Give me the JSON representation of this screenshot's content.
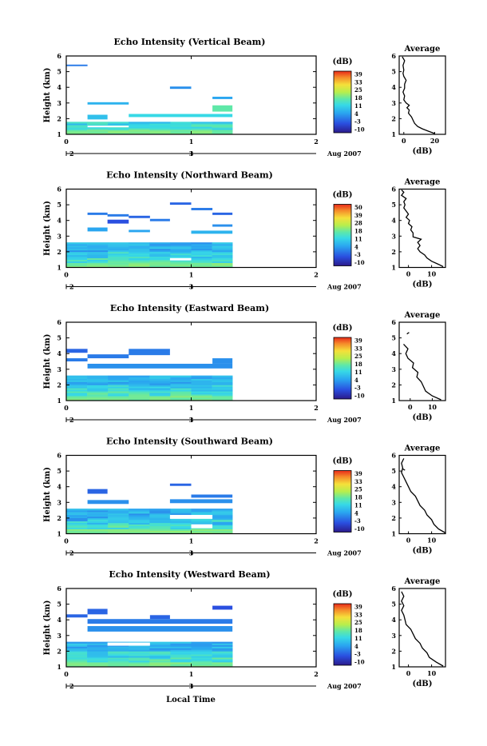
{
  "panels": [
    {
      "title": "Echo Intensity (Vertical Beam)",
      "avg_title": "Average",
      "colorbar_ticks": [
        "39",
        "33",
        "25",
        "18",
        "11",
        "4",
        "-3",
        "-10"
      ],
      "avg_x_ticks": [
        "0",
        "20"
      ],
      "avg_xlim": [
        -3,
        27
      ]
    },
    {
      "title": "Echo Intensity (Northward Beam)",
      "avg_title": "Average",
      "colorbar_ticks": [
        "50",
        "39",
        "28",
        "18",
        "11",
        "4",
        "-3",
        "-10"
      ],
      "avg_x_ticks": [
        "0",
        "10"
      ],
      "avg_xlim": [
        -4,
        16
      ]
    },
    {
      "title": "Echo Intensity (Eastward Beam)",
      "avg_title": "Average",
      "colorbar_ticks": [
        "39",
        "33",
        "25",
        "18",
        "11",
        "4",
        "-3",
        "-10"
      ],
      "avg_x_ticks": [
        "0",
        "10"
      ],
      "avg_xlim": [
        -5,
        16
      ]
    },
    {
      "title": "Echo Intensity (Southward Beam)",
      "avg_title": "Average",
      "colorbar_ticks": [
        "39",
        "33",
        "25",
        "18",
        "11",
        "4",
        "-3",
        "-10"
      ],
      "avg_x_ticks": [
        "0",
        "10"
      ],
      "avg_xlim": [
        -4,
        16
      ]
    },
    {
      "title": "Echo Intensity (Westward Beam)",
      "avg_title": "Average",
      "colorbar_ticks": [
        "39",
        "33",
        "25",
        "18",
        "11",
        "4",
        "-3",
        "-10"
      ],
      "avg_x_ticks": [
        "0",
        "10"
      ],
      "avg_xlim": [
        -4,
        16
      ]
    }
  ],
  "common": {
    "ylabel": "Height (km)",
    "y_ticks": [
      "1",
      "2",
      "3",
      "4",
      "5",
      "6"
    ],
    "x_ticks": [
      "0",
      "1",
      "2"
    ],
    "date_ticks": [
      "2",
      "3"
    ],
    "date_label": "Aug 2007",
    "xlabel": "Local Time",
    "unit_label": "(dB)",
    "avg_xlabel": "(dB)"
  },
  "chart_data": [
    {
      "type": "heatmap",
      "beam": "vertical",
      "xlim": [
        0,
        2
      ],
      "ylim": [
        1,
        6
      ],
      "data_end_x": 1.33,
      "blocks": [
        [
          0,
          0.17,
          5.35,
          5.45,
          -4
        ],
        [
          0.17,
          0.5,
          2.9,
          3.05,
          -1
        ],
        [
          0.83,
          1,
          3.9,
          4.05,
          -3
        ],
        [
          1.17,
          1.33,
          3.25,
          3.4,
          -2
        ],
        [
          1.17,
          1.33,
          2.45,
          2.85,
          5
        ],
        [
          0.17,
          0.33,
          1.95,
          2.25,
          0
        ],
        [
          0.5,
          1.33,
          2.1,
          2.3,
          2
        ]
      ],
      "average": [
        [
          1.05,
          20
        ],
        [
          1.2,
          16
        ],
        [
          1.35,
          12
        ],
        [
          1.5,
          9
        ],
        [
          1.7,
          7
        ],
        [
          1.9,
          6
        ],
        [
          2.1,
          5
        ],
        [
          2.35,
          3
        ],
        [
          2.55,
          3.5
        ],
        [
          2.7,
          2
        ],
        [
          2.85,
          3.5
        ],
        [
          3.0,
          1.5
        ],
        [
          3.2,
          0
        ],
        [
          3.45,
          0.5
        ],
        [
          3.7,
          -0.5
        ],
        [
          3.95,
          0.5
        ],
        [
          4.2,
          0.5
        ],
        [
          4.45,
          1.5
        ],
        [
          4.7,
          0
        ],
        [
          4.9,
          -0.5
        ],
        [
          5.1,
          0
        ],
        [
          5.4,
          -0.5
        ],
        [
          5.7,
          0.5
        ],
        [
          5.95,
          -1
        ]
      ]
    },
    {
      "type": "heatmap",
      "beam": "northward",
      "xlim": [
        0,
        2
      ],
      "ylim": [
        1,
        6
      ],
      "data_end_x": 1.33,
      "blocks": [
        [
          0.17,
          0.33,
          4.35,
          4.5,
          -4
        ],
        [
          0.33,
          0.5,
          4.25,
          4.4,
          -4
        ],
        [
          0.5,
          0.67,
          4.15,
          4.3,
          -5
        ],
        [
          0.67,
          0.83,
          3.95,
          4.1,
          -4
        ],
        [
          0.83,
          1,
          5.0,
          5.15,
          -5
        ],
        [
          1,
          1.17,
          4.65,
          4.8,
          -4
        ],
        [
          1.17,
          1.33,
          4.35,
          4.5,
          -5
        ],
        [
          0.33,
          0.5,
          3.8,
          4.05,
          -6
        ],
        [
          0.17,
          0.33,
          3.3,
          3.55,
          -2
        ],
        [
          0.5,
          0.67,
          3.25,
          3.4,
          -2
        ],
        [
          1,
          1.33,
          3.15,
          3.35,
          -1
        ],
        [
          1.17,
          1.33,
          3.6,
          3.75,
          -3
        ]
      ],
      "average": [
        [
          1.05,
          15
        ],
        [
          1.2,
          13
        ],
        [
          1.4,
          10
        ],
        [
          1.6,
          8
        ],
        [
          1.8,
          7
        ],
        [
          2.0,
          5
        ],
        [
          2.2,
          4
        ],
        [
          2.4,
          5
        ],
        [
          2.6,
          4
        ],
        [
          2.8,
          5.5
        ],
        [
          2.95,
          2
        ],
        [
          3.2,
          2
        ],
        [
          3.4,
          1
        ],
        [
          3.6,
          1.5
        ],
        [
          3.8,
          0
        ],
        [
          4.0,
          0.5
        ],
        [
          4.2,
          -1
        ],
        [
          4.4,
          0
        ],
        [
          4.6,
          -1
        ],
        [
          4.8,
          -2
        ],
        [
          5.0,
          -1.5
        ],
        [
          5.2,
          -2
        ],
        [
          5.4,
          -1
        ],
        [
          5.6,
          -3
        ],
        [
          5.8,
          -2
        ],
        [
          5.95,
          -3
        ]
      ]
    },
    {
      "type": "heatmap",
      "beam": "eastward",
      "xlim": [
        0,
        2
      ],
      "ylim": [
        1,
        6
      ],
      "data_end_x": 1.33,
      "blocks": [
        [
          0,
          0.17,
          4.05,
          4.3,
          -5
        ],
        [
          0,
          0.17,
          3.5,
          3.7,
          -4
        ],
        [
          0.17,
          0.5,
          3.7,
          3.95,
          -4
        ],
        [
          0.5,
          0.83,
          3.9,
          4.3,
          -4
        ],
        [
          0.17,
          1.33,
          3.05,
          3.35,
          -3
        ],
        [
          1.17,
          1.33,
          3.35,
          3.7,
          -3
        ]
      ],
      "average": [
        [
          1.05,
          14
        ],
        [
          1.3,
          10
        ],
        [
          1.6,
          7
        ],
        [
          1.9,
          6
        ],
        [
          2.2,
          5
        ],
        [
          2.5,
          3
        ],
        [
          2.8,
          3.5
        ],
        [
          3.1,
          1
        ],
        [
          3.4,
          1.5
        ],
        [
          3.7,
          -1
        ],
        [
          4.0,
          -2
        ],
        [
          4.3,
          -1
        ],
        [
          4.6,
          -3
        ]
      ]
    },
    {
      "type": "heatmap",
      "beam": "southward",
      "xlim": [
        0,
        2
      ],
      "ylim": [
        1,
        6
      ],
      "data_end_x": 1.33,
      "blocks": [
        [
          0.83,
          1,
          4.05,
          4.2,
          -5
        ],
        [
          0.17,
          0.33,
          3.55,
          3.85,
          -5
        ],
        [
          1,
          1.33,
          3.3,
          3.5,
          -4
        ],
        [
          0.17,
          0.5,
          2.9,
          3.15,
          -3
        ],
        [
          0.83,
          1.33,
          2.95,
          3.2,
          -3
        ],
        [
          0,
          0.17,
          1.8,
          2.0,
          -3
        ],
        [
          1.17,
          1.33,
          1.55,
          1.75,
          -2
        ]
      ],
      "average": [
        [
          1.05,
          16
        ],
        [
          1.3,
          13
        ],
        [
          1.6,
          11
        ],
        [
          1.9,
          10
        ],
        [
          2.2,
          8
        ],
        [
          2.5,
          7
        ],
        [
          2.8,
          5
        ],
        [
          3.1,
          4
        ],
        [
          3.4,
          3
        ],
        [
          3.7,
          1
        ],
        [
          4.0,
          0
        ],
        [
          4.3,
          -1
        ],
        [
          4.6,
          -2
        ],
        [
          4.9,
          -3
        ],
        [
          5.2,
          -2.5
        ],
        [
          5.5,
          -3
        ],
        [
          5.8,
          -2
        ]
      ]
    },
    {
      "type": "heatmap",
      "beam": "westward",
      "xlim": [
        0,
        2
      ],
      "ylim": [
        1,
        6
      ],
      "data_end_x": 1.33,
      "blocks": [
        [
          1.17,
          1.33,
          4.65,
          4.9,
          -6
        ],
        [
          0.17,
          0.33,
          4.35,
          4.7,
          -5
        ],
        [
          0,
          0.17,
          4.15,
          4.35,
          -5
        ],
        [
          0.17,
          1.33,
          3.75,
          4.05,
          -4
        ],
        [
          0.67,
          0.83,
          4.05,
          4.3,
          -5
        ],
        [
          0.17,
          1.33,
          3.25,
          3.6,
          -3
        ]
      ],
      "average": [
        [
          1.05,
          15
        ],
        [
          1.3,
          12
        ],
        [
          1.6,
          9
        ],
        [
          1.9,
          8
        ],
        [
          2.2,
          6
        ],
        [
          2.5,
          5
        ],
        [
          2.8,
          3
        ],
        [
          3.1,
          2
        ],
        [
          3.4,
          1
        ],
        [
          3.7,
          -1
        ],
        [
          4.0,
          -1.5
        ],
        [
          4.3,
          -2
        ],
        [
          4.6,
          -3
        ],
        [
          4.9,
          -2
        ],
        [
          5.2,
          -3
        ],
        [
          5.5,
          -2
        ],
        [
          5.8,
          -3
        ]
      ]
    }
  ]
}
